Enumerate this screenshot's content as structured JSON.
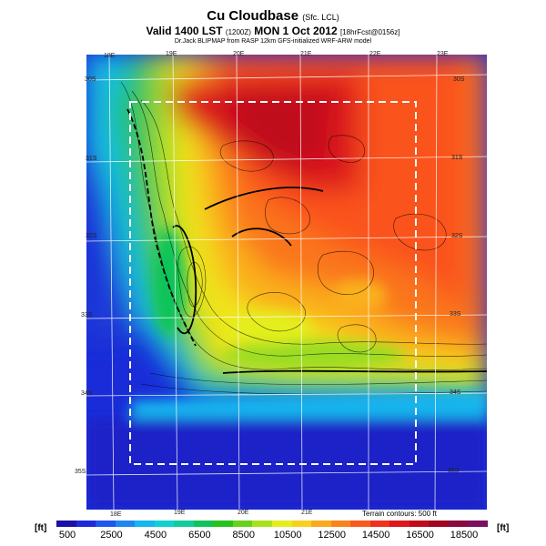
{
  "header": {
    "title": "Cu Cloudbase",
    "title_note": "(Sfc. LCL)",
    "valid_prefix": "Valid 1400 LST",
    "valid_time": "(1200Z)",
    "valid_date": "MON 1 Oct 2012",
    "forecast_note": "[18hrFcst@0156z]",
    "subtitle": "Dr.Jack BLIPMAP from RASP 12km GFS-initialized WRF-ARW model"
  },
  "map": {
    "longitude_labels_top": [
      "18E",
      "19E",
      "20E",
      "21E",
      "22E",
      "23E"
    ],
    "longitude_labels_bottom": [
      "18E",
      "19E",
      "20E",
      "21E"
    ],
    "latitude_labels_left": [
      "30S",
      "31S",
      "32S",
      "33S",
      "34S",
      "35S"
    ],
    "latitude_labels_right": [
      "30S",
      "31S",
      "32S",
      "33S",
      "34S",
      "35S"
    ],
    "terrain_note": "Terrain contours: 500 ft"
  },
  "legend": {
    "unit_left": "[ft]",
    "unit_right": "[ft]",
    "tick_labels": [
      "500",
      "2500",
      "4500",
      "6500",
      "8500",
      "10500",
      "12500",
      "14500",
      "16500",
      "18500"
    ],
    "colors": [
      "#1a10a8",
      "#1e2ad8",
      "#1f56ee",
      "#1e86f0",
      "#16b6ee",
      "#10d0d0",
      "#10cc9c",
      "#10c458",
      "#28c21e",
      "#66d21c",
      "#a8e21c",
      "#e4ee1c",
      "#fad01c",
      "#faa81c",
      "#fa821c",
      "#fa5a1c",
      "#ee321c",
      "#dc161c",
      "#c00a1c",
      "#a00620",
      "#8a0a40",
      "#7a1060"
    ]
  }
}
